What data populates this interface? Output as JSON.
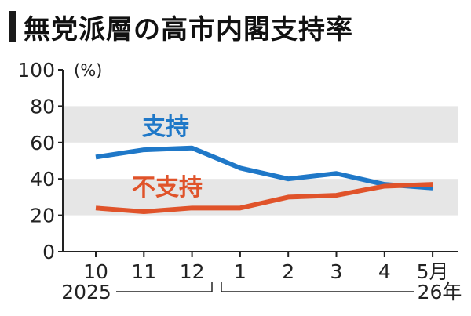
{
  "title": "無党派層の高市内閣支持率",
  "chart_data": {
    "type": "line",
    "title": "無党派層の高市内閣支持率",
    "categories": [
      "10",
      "11",
      "12",
      "1",
      "2",
      "3",
      "4",
      "5月"
    ],
    "ylabel": "(%)",
    "ylim": [
      0,
      100
    ],
    "yticks": [
      0,
      20,
      40,
      60,
      80,
      100
    ],
    "year_labels": [
      "2025",
      "26年"
    ],
    "series": [
      {
        "name": "支持",
        "color": "#1f78c8",
        "values": [
          52,
          56,
          57,
          46,
          40,
          43,
          37,
          35
        ]
      },
      {
        "name": "不支持",
        "color": "#e0532a",
        "values": [
          24,
          22,
          24,
          24,
          30,
          31,
          36,
          37
        ]
      }
    ],
    "grid_bands": true,
    "legend": "inline labels"
  }
}
